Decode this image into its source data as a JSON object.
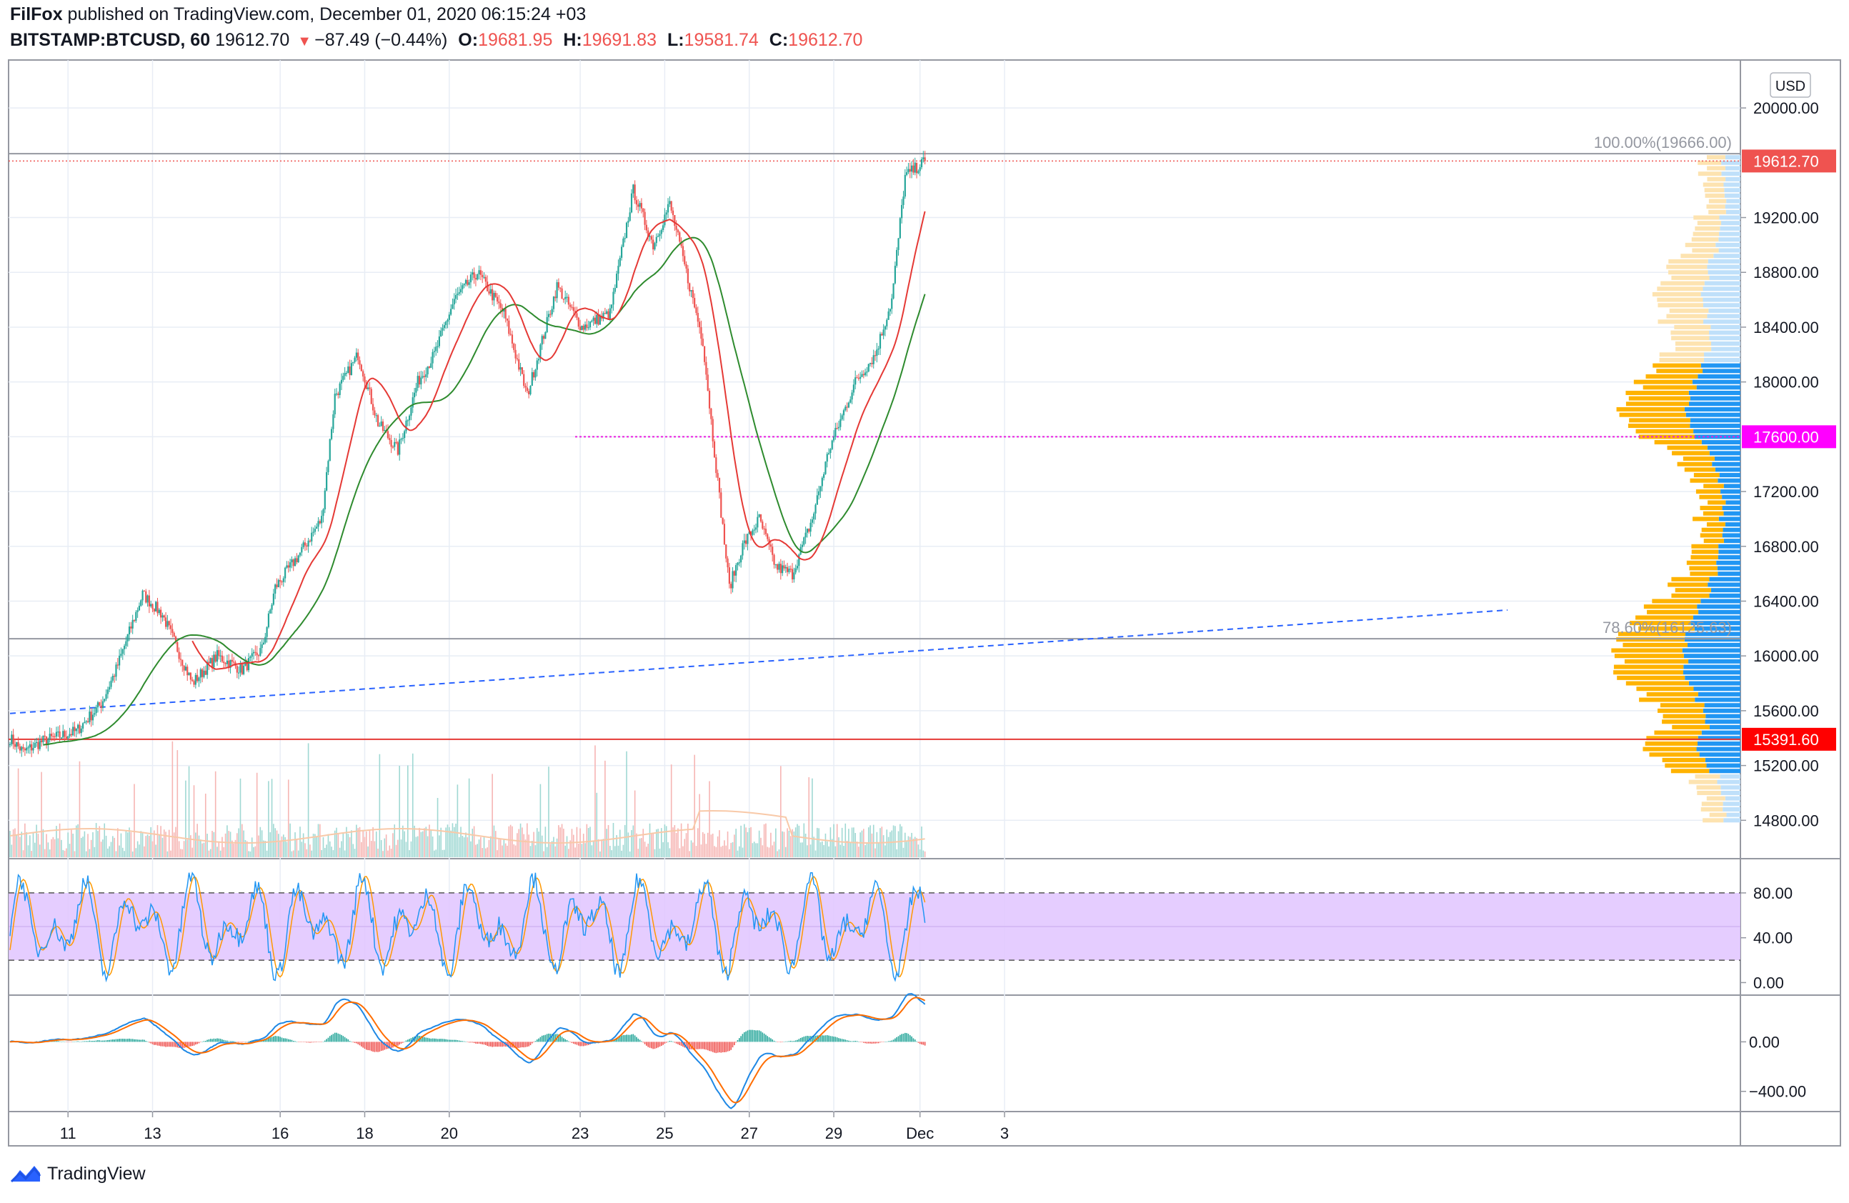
{
  "header": {
    "line1": "FilFox published on TradingView.com, December 01, 2020 06:15:24 +03",
    "author": "FilFox",
    "published_text": " published on TradingView.com, December 01, 2020 06:15:24 +03",
    "symbol": "BITSTAMP:BTCUSD, 60",
    "last": "19612.70",
    "change": "−87.49 (−0.44%)",
    "open_label": "O:",
    "open": "19681.95",
    "high_label": "H:",
    "high": "19691.83",
    "low_label": "L:",
    "low": "19581.74",
    "close_label": "C:",
    "close": "19612.70"
  },
  "footer": {
    "brand": "TradingView"
  },
  "colors": {
    "up": "#26a69a",
    "down": "#ef5350",
    "ma_green": "#2e8b2e",
    "ma_red": "#e53935",
    "trend_blue": "#2962ff",
    "level_red": "#e53935",
    "magenta": "#e91ee0",
    "vp_blue": "#2196f3",
    "vp_orange": "#ffb300",
    "stoch_band": "#e1c4ff",
    "stoch_k": "#2196f3",
    "stoch_d": "#ff9800",
    "macd": "#1e88e5",
    "signal": "#ff6d00"
  },
  "chart_data": {
    "type": "candlestick",
    "symbol": "BITSTAMP:BTCUSD",
    "interval": "60",
    "currency": "USD",
    "x_ticks": [
      "11",
      "13",
      "16",
      "18",
      "20",
      "23",
      "25",
      "27",
      "29",
      "Dec",
      "3"
    ],
    "y_ticks": [
      20000,
      19200,
      18800,
      18400,
      18000,
      17600,
      17200,
      16800,
      16400,
      16000,
      15600,
      15200,
      14800
    ],
    "y_tick_labels": [
      "20000.00",
      "19200.00",
      "18800.00",
      "18400.00",
      "18000.00",
      "17200.00",
      "16800.00",
      "16400.00",
      "16000.00",
      "15600.00",
      "15200.00",
      "14800.00"
    ],
    "ylim": [
      14520,
      20350
    ],
    "price_path": [
      [
        0,
        15400
      ],
      [
        8,
        15300
      ],
      [
        20,
        15380
      ],
      [
        40,
        15450
      ],
      [
        55,
        15650
      ],
      [
        64,
        15900
      ],
      [
        80,
        16450
      ],
      [
        92,
        16300
      ],
      [
        110,
        15800
      ],
      [
        125,
        16000
      ],
      [
        140,
        15900
      ],
      [
        152,
        16050
      ],
      [
        160,
        16500
      ],
      [
        175,
        16750
      ],
      [
        188,
        17000
      ],
      [
        196,
        17900
      ],
      [
        210,
        18200
      ],
      [
        222,
        17700
      ],
      [
        234,
        17500
      ],
      [
        246,
        18000
      ],
      [
        256,
        18200
      ],
      [
        268,
        18600
      ],
      [
        282,
        18800
      ],
      [
        298,
        18500
      ],
      [
        312,
        17900
      ],
      [
        330,
        18700
      ],
      [
        345,
        18400
      ],
      [
        362,
        18500
      ],
      [
        376,
        19400
      ],
      [
        388,
        19000
      ],
      [
        398,
        19300
      ],
      [
        410,
        18700
      ],
      [
        418,
        18300
      ],
      [
        424,
        17600
      ],
      [
        434,
        16500
      ],
      [
        442,
        16800
      ],
      [
        452,
        17000
      ],
      [
        462,
        16650
      ],
      [
        472,
        16600
      ],
      [
        484,
        17000
      ],
      [
        494,
        17500
      ],
      [
        510,
        18000
      ],
      [
        522,
        18200
      ],
      [
        532,
        18600
      ],
      [
        540,
        19500
      ],
      [
        552,
        19612.7
      ]
    ],
    "price_labels": [
      {
        "text": "19612.70",
        "value": 19612.7,
        "color": "#ef5350"
      },
      {
        "text": "17600.00",
        "value": 17600,
        "color": "#ff00ff"
      },
      {
        "text": "15391.60",
        "value": 15391.6,
        "color": "#ff0000"
      }
    ],
    "fib_levels": [
      {
        "text": "100.00%(19666.00)",
        "value": 19666
      },
      {
        "text": "78.60%(16125.63)",
        "value": 16125.63
      }
    ],
    "stoch": {
      "ticks": [
        "80.00",
        "40.00",
        "0.00"
      ],
      "tick_values": [
        80,
        40,
        0
      ],
      "band": [
        20,
        80
      ],
      "ylim": [
        -8,
        108
      ]
    },
    "macd": {
      "ticks": [
        "0.00",
        "−400.00"
      ],
      "tick_values": [
        0,
        -400
      ],
      "ylim": [
        -540,
        360
      ]
    }
  }
}
